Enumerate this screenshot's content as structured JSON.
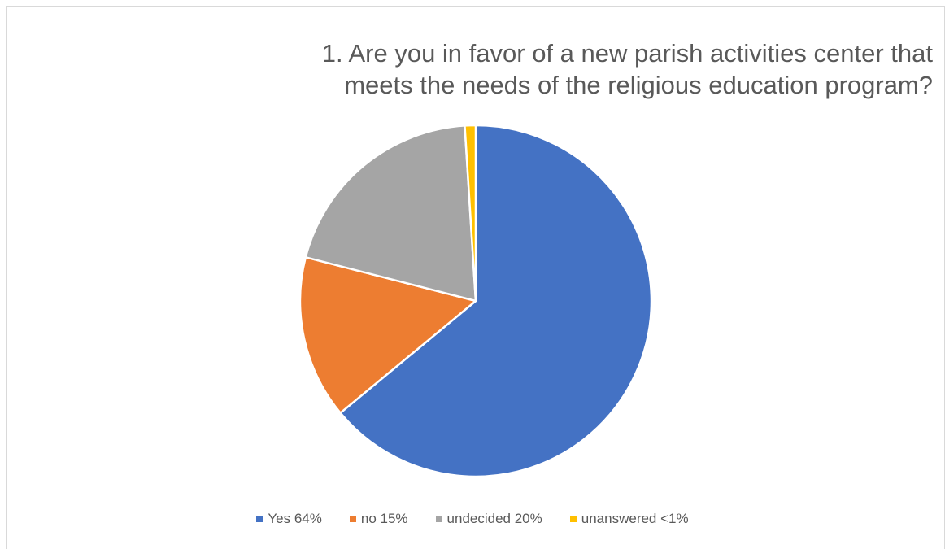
{
  "chart_data": {
    "type": "pie",
    "title_lines": [
      "1. Are you in favor of a new parish activities center that",
      "meets the needs of the religious education program?"
    ],
    "slices": [
      {
        "label": "Yes 64%",
        "value": 64,
        "color": "#4472c4"
      },
      {
        "label": "no 15%",
        "value": 15,
        "color": "#ed7d31"
      },
      {
        "label": "undecided 20%",
        "value": 20,
        "color": "#a5a5a5"
      },
      {
        "label": "unanswered <1%",
        "value": 1,
        "color": "#ffc000"
      }
    ],
    "legend_position": "bottom"
  }
}
